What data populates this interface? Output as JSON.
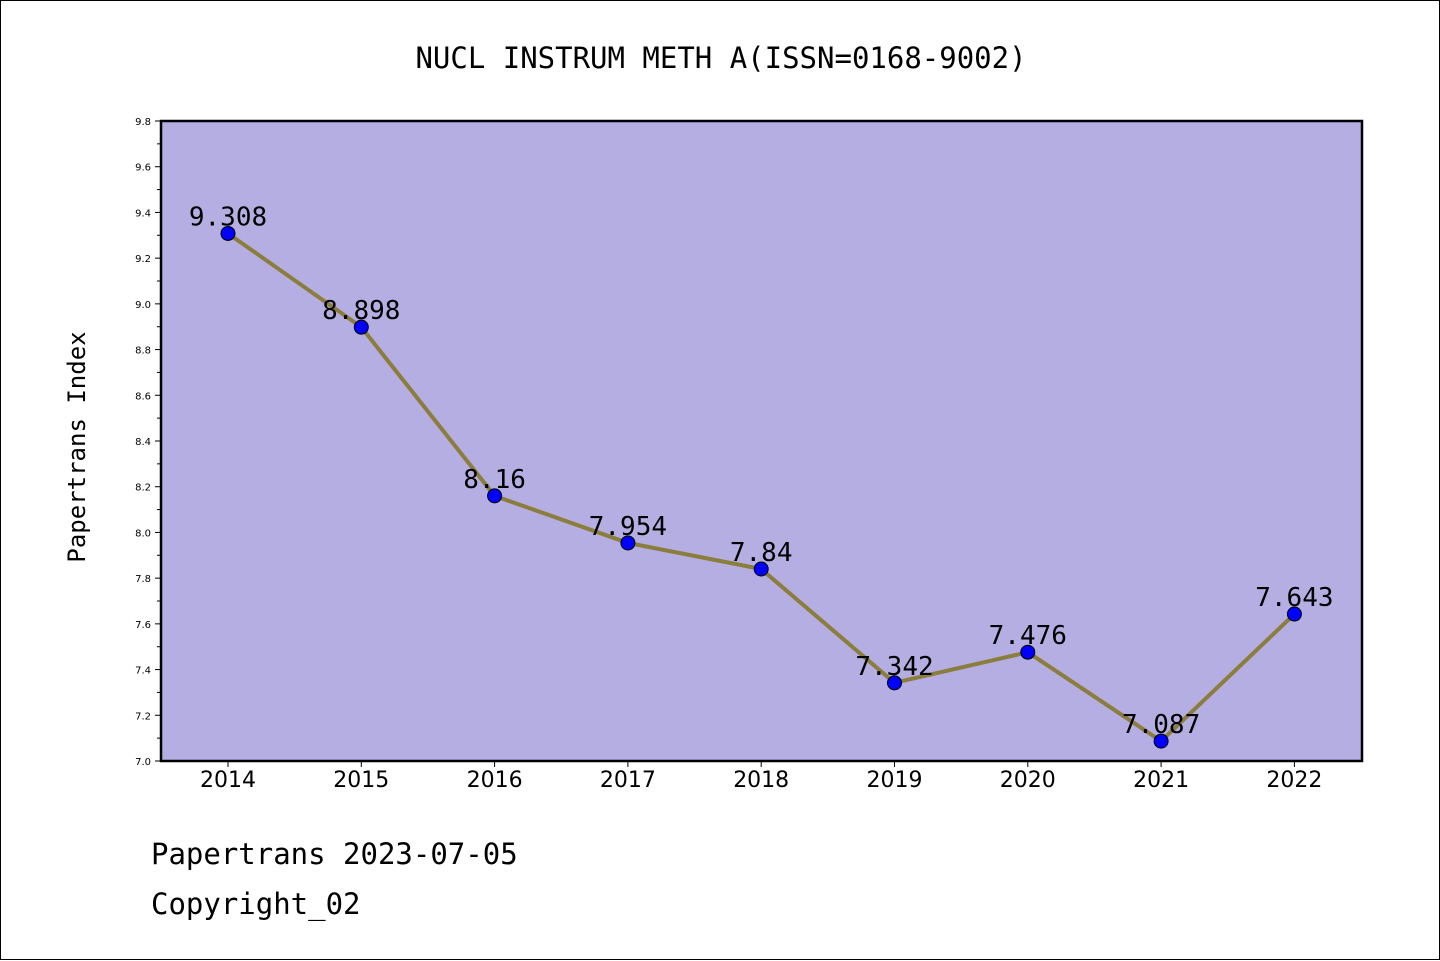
{
  "chart_data": {
    "type": "line",
    "title": "NUCL INSTRUM METH A(ISSN=0168-9002)",
    "xlabel": "",
    "ylabel": "Papertrans Index",
    "categories": [
      "2014",
      "2015",
      "2016",
      "2017",
      "2018",
      "2019",
      "2020",
      "2021",
      "2022"
    ],
    "values": [
      9.308,
      8.898,
      8.16,
      7.954,
      7.84,
      7.342,
      7.476,
      7.087,
      7.643
    ],
    "data_labels": [
      "9.308",
      "8.898",
      "8.16",
      "7.954",
      "7.84",
      "7.342",
      "7.476",
      "7.087",
      "7.643"
    ],
    "ylim": [
      7.0,
      9.8
    ],
    "yticks": [
      "7.0",
      "7.2",
      "7.4",
      "7.6",
      "7.8",
      "8.0",
      "8.2",
      "8.4",
      "8.6",
      "8.8",
      "9.0",
      "9.2",
      "9.4",
      "9.6",
      "9.8"
    ],
    "grid": false,
    "legend": "none",
    "colors": {
      "plot_background": "#b5aee2",
      "line": "#8b7d3c",
      "marker": "#0000ff",
      "marker_edge": "#000000"
    }
  },
  "footer": {
    "line1": "Papertrans 2023-07-05",
    "line2": "Copyright_02"
  }
}
